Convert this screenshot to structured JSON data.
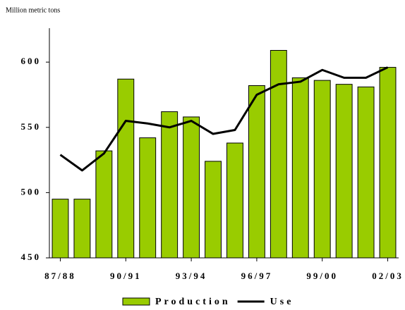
{
  "chart_data": {
    "type": "bar_line",
    "y_label": "Million metric tons",
    "categories": [
      "87/88",
      null,
      null,
      "90/91",
      null,
      null,
      "93/94",
      null,
      null,
      "96/97",
      null,
      null,
      "99/00",
      null,
      null,
      "02/03"
    ],
    "series": [
      {
        "name": "Production",
        "type": "bar",
        "color": "#99cc00",
        "values": [
          495,
          495,
          532,
          587,
          542,
          562,
          558,
          524,
          538,
          582,
          609,
          588,
          586,
          583,
          581,
          596
        ]
      },
      {
        "name": "Use",
        "type": "line",
        "color": "#000000",
        "values": [
          529,
          517,
          530,
          555,
          553,
          550,
          555,
          545,
          548,
          575,
          583,
          585,
          594,
          588,
          588,
          596
        ]
      }
    ],
    "ylim": [
      450,
      626
    ],
    "yticks": [
      450,
      500,
      550,
      600
    ],
    "grid": false
  }
}
